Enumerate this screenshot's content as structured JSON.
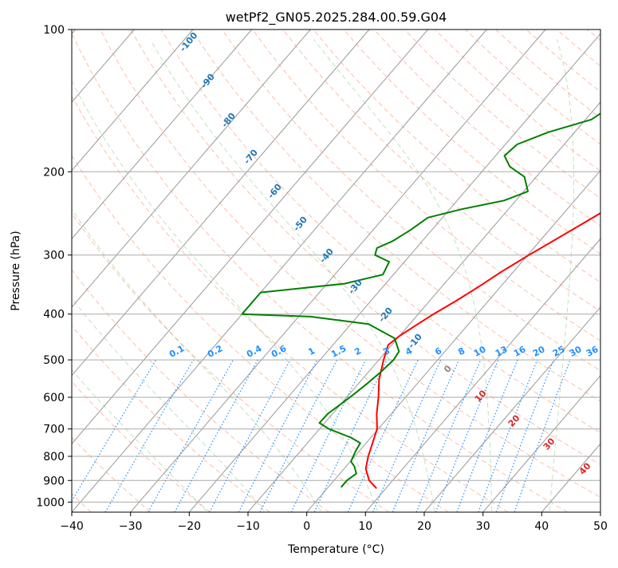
{
  "chart_data": {
    "type": "line",
    "title": "wetPf2_GN05.2025.284.00.59.G04",
    "xlabel": "Temperature (°C)",
    "ylabel": "Pressure (hPa)",
    "xlim": [
      -40,
      50
    ],
    "ylim": [
      1050,
      100
    ],
    "y_scale": "log",
    "grid": true,
    "x_ticks": [
      -40,
      -30,
      -20,
      -10,
      0,
      10,
      20,
      30,
      40,
      50
    ],
    "x_tick_labels": [
      "−40",
      "−30",
      "−20",
      "−10",
      "0",
      "10",
      "20",
      "30",
      "40",
      "50"
    ],
    "y_ticks": [
      100,
      200,
      300,
      400,
      500,
      600,
      700,
      800,
      900,
      1000
    ],
    "y_tick_labels": [
      "100",
      "200",
      "300",
      "400",
      "500",
      "600",
      "700",
      "800",
      "900",
      "1000"
    ],
    "series": [
      {
        "color": "#ff0000",
        "points": [
          [
            8.4,
            935
          ],
          [
            6,
            900
          ],
          [
            3.7,
            850
          ],
          [
            2.3,
            800
          ],
          [
            1.1,
            750
          ],
          [
            -0.2,
            700
          ],
          [
            -2.5,
            650
          ],
          [
            -4.6,
            600
          ],
          [
            -7.1,
            550
          ],
          [
            -9.2,
            500
          ],
          [
            -10.6,
            465
          ],
          [
            -10,
            445
          ],
          [
            -8.9,
            425
          ],
          [
            -7.4,
            400
          ],
          [
            -5.5,
            375
          ],
          [
            -3.7,
            350
          ],
          [
            -2,
            325
          ],
          [
            0.2,
            300
          ],
          [
            3.9,
            265
          ],
          [
            6.8,
            240
          ],
          [
            9.6,
            222
          ],
          [
            15.3,
            200
          ],
          [
            20,
            180
          ],
          [
            24.3,
            162
          ],
          [
            29.5,
            140
          ],
          [
            33.6,
            125
          ],
          [
            35.7,
            115
          ],
          [
            40.9,
            105
          ],
          [
            43.4,
            100
          ]
        ]
      },
      {
        "color": "#008000",
        "points": [
          [
            2.2,
            930
          ],
          [
            2.2,
            900
          ],
          [
            2.8,
            870
          ],
          [
            1.4,
            840
          ],
          [
            0.1,
            820
          ],
          [
            -0.6,
            780
          ],
          [
            -1,
            750
          ],
          [
            -3.4,
            730
          ],
          [
            -8.4,
            700
          ],
          [
            -10.9,
            680
          ],
          [
            -10.8,
            650
          ],
          [
            -10,
            620
          ],
          [
            -9.2,
            590
          ],
          [
            -8.5,
            560
          ],
          [
            -7.9,
            530
          ],
          [
            -7.5,
            500
          ],
          [
            -7.8,
            480
          ],
          [
            -10.5,
            450
          ],
          [
            -17,
            420
          ],
          [
            -28,
            405
          ],
          [
            -40,
            400
          ],
          [
            -40,
            360
          ],
          [
            -27,
            345
          ],
          [
            -21.8,
            330
          ],
          [
            -22.6,
            310
          ],
          [
            -26,
            300
          ],
          [
            -26.7,
            290
          ],
          [
            -25,
            280
          ],
          [
            -23.6,
            265
          ],
          [
            -22.5,
            250
          ],
          [
            -18,
            240
          ],
          [
            -12,
            230
          ],
          [
            -9.3,
            220
          ],
          [
            -12,
            205
          ],
          [
            -16,
            195
          ],
          [
            -18.5,
            185
          ],
          [
            -18,
            175
          ],
          [
            -14.5,
            165
          ],
          [
            -9,
            155
          ],
          [
            -7.5,
            145
          ],
          [
            -7.6,
            135
          ],
          [
            -6.5,
            125
          ],
          [
            -4.5,
            117
          ],
          [
            -2.5,
            110
          ],
          [
            -1,
            100
          ]
        ]
      }
    ],
    "dry_adiabat_labels": [
      "-100",
      "-90",
      "-80",
      "-70",
      "-60",
      "-50",
      "-40",
      "-30",
      "-20",
      "-10"
    ],
    "moist_adiabat_labels": [
      "0",
      "10",
      "20",
      "30",
      "40"
    ],
    "mixing_ratio_labels": [
      "0.1",
      "0.2",
      "0.4",
      "0.6",
      "1",
      "1.5",
      "2",
      "3",
      "4",
      "6",
      "8",
      "10",
      "13",
      "16",
      "20",
      "25",
      "30",
      "36"
    ]
  }
}
